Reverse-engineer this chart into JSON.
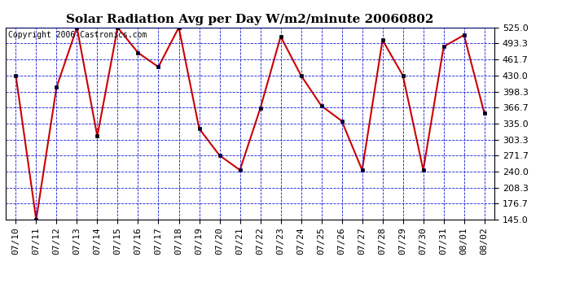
{
  "title": "Solar Radiation Avg per Day W/m2/minute 20060802",
  "copyright": "Copyright 2006 Castronics.com",
  "x_labels": [
    "07/10",
    "07/11",
    "07/12",
    "07/13",
    "07/14",
    "07/15",
    "07/16",
    "07/17",
    "07/18",
    "07/19",
    "07/20",
    "07/21",
    "07/22",
    "07/23",
    "07/24",
    "07/25",
    "07/26",
    "07/27",
    "07/28",
    "07/29",
    "07/30",
    "07/31",
    "08/01",
    "08/02"
  ],
  "y_values": [
    430,
    145,
    407,
    525,
    310,
    525,
    475,
    447,
    525,
    325,
    272,
    243,
    365,
    507,
    430,
    370,
    340,
    243,
    500,
    430,
    243,
    487,
    510,
    355
  ],
  "y_min": 145.0,
  "y_max": 525.0,
  "y_ticks": [
    145.0,
    176.7,
    208.3,
    240.0,
    271.7,
    303.3,
    335.0,
    366.7,
    398.3,
    430.0,
    461.7,
    493.3,
    525.0
  ],
  "line_color": "#cc0000",
  "marker_color": "#000000",
  "bg_color": "#ffffff",
  "grid_color": "#0000cc",
  "title_fontsize": 11,
  "copyright_fontsize": 7,
  "tick_fontsize": 8
}
